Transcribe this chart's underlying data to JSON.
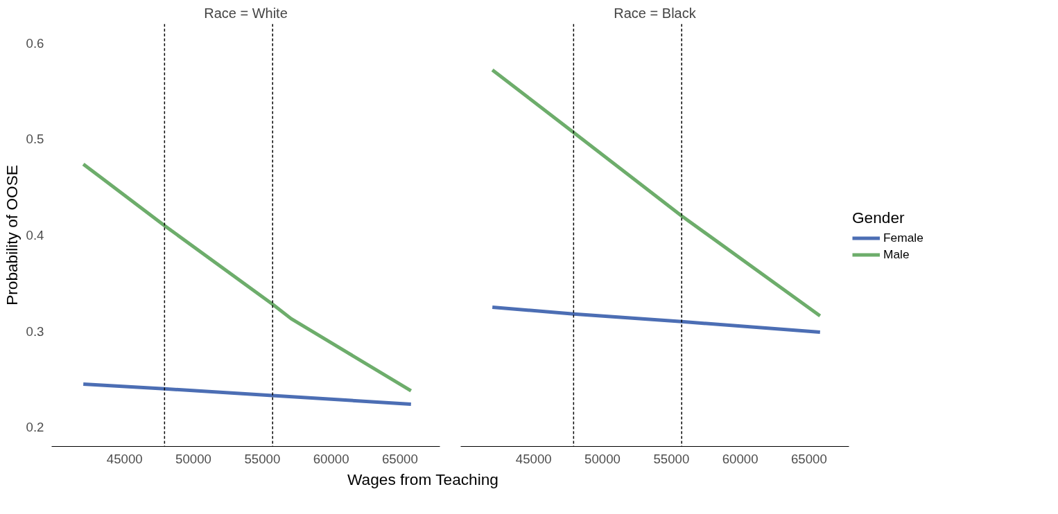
{
  "chart_data": [
    {
      "type": "line",
      "title": "Race = White",
      "xlabel": "Wages from Teaching",
      "ylabel": "Probability of OOSE",
      "xlim": [
        39700,
        67900
      ],
      "xticks": [
        45000,
        50000,
        55000,
        60000,
        65000
      ],
      "ylim": [
        0.18,
        0.62
      ],
      "yticks": [
        0.2,
        0.3,
        0.4,
        0.5,
        0.6
      ],
      "grid": false,
      "legend": false,
      "line_style": "solid",
      "ref_lines": [
        {
          "axis": "x",
          "value": 47900,
          "line_style": "dashed",
          "color": "#000000"
        },
        {
          "axis": "x",
          "value": 55750,
          "line_style": "dashed",
          "color": "#000000"
        }
      ],
      "series": [
        {
          "color": "#4c6eb4",
          "x": [
            42000,
            47900,
            55750,
            65800
          ],
          "values": [
            0.245,
            0.24,
            0.233,
            0.224
          ]
        },
        {
          "color": "#6dad6b",
          "x": [
            42000,
            47900,
            55750,
            57100,
            65800
          ],
          "values": [
            0.474,
            0.41,
            0.328,
            0.313,
            0.238
          ]
        }
      ]
    },
    {
      "type": "line",
      "title": "Race = Black",
      "legend_title": "Gender",
      "xlim": [
        39700,
        67900
      ],
      "xticks": [
        45000,
        50000,
        55000,
        60000,
        65000
      ],
      "ylim": [
        0.18,
        0.62
      ],
      "yticks": [
        0.2,
        0.3,
        0.4,
        0.5,
        0.6
      ],
      "grid": false,
      "legend": "right",
      "tick_labels": "x",
      "line_style": "solid",
      "ref_lines": [
        {
          "axis": "x",
          "value": 47900,
          "line_style": "dashed",
          "color": "#000000"
        },
        {
          "axis": "x",
          "value": 55750,
          "line_style": "dashed",
          "color": "#000000"
        }
      ],
      "series": [
        {
          "name": "Female",
          "color": "#4c6eb4",
          "x": [
            42000,
            47900,
            55750,
            65800
          ],
          "values": [
            0.325,
            0.318,
            0.31,
            0.299
          ]
        },
        {
          "name": "Male",
          "color": "#6dad6b",
          "x": [
            42000,
            47900,
            55750,
            65800
          ],
          "values": [
            0.572,
            0.507,
            0.42,
            0.316
          ]
        }
      ]
    }
  ]
}
